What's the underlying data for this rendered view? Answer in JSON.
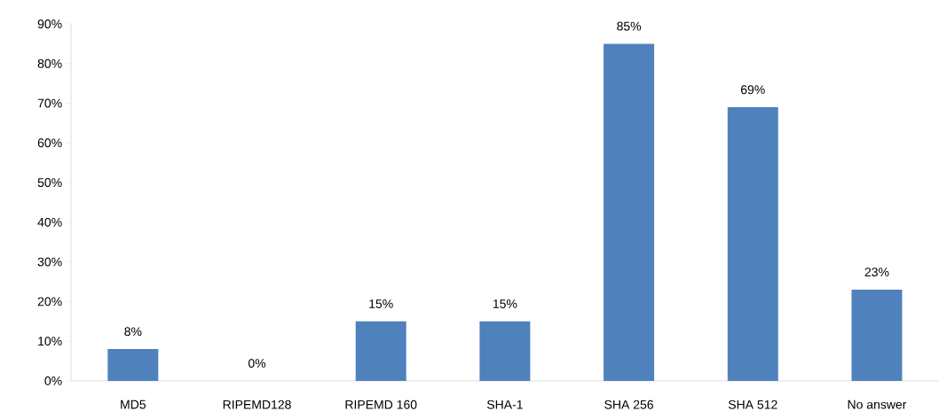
{
  "chart_data": {
    "type": "bar",
    "categories": [
      "MD5",
      "RIPEMD128",
      "RIPEMD 160",
      "SHA-1",
      "SHA 256",
      "SHA 512",
      "No answer"
    ],
    "values": [
      8,
      0,
      15,
      15,
      85,
      69,
      23
    ],
    "value_labels": [
      "8%",
      "0%",
      "15%",
      "15%",
      "85%",
      "69%",
      "23%"
    ],
    "color": "#4f81bd",
    "ylim": [
      0,
      90
    ],
    "yticks": [
      {
        "value": 0,
        "label": "0%"
      },
      {
        "value": 10,
        "label": "10%"
      },
      {
        "value": 20,
        "label": "20%"
      },
      {
        "value": 30,
        "label": "30%"
      },
      {
        "value": 40,
        "label": "40%"
      },
      {
        "value": 50,
        "label": "50%"
      },
      {
        "value": 60,
        "label": "60%"
      },
      {
        "value": 70,
        "label": "70%"
      },
      {
        "value": 80,
        "label": "80%"
      },
      {
        "value": 90,
        "label": "90%"
      }
    ]
  }
}
